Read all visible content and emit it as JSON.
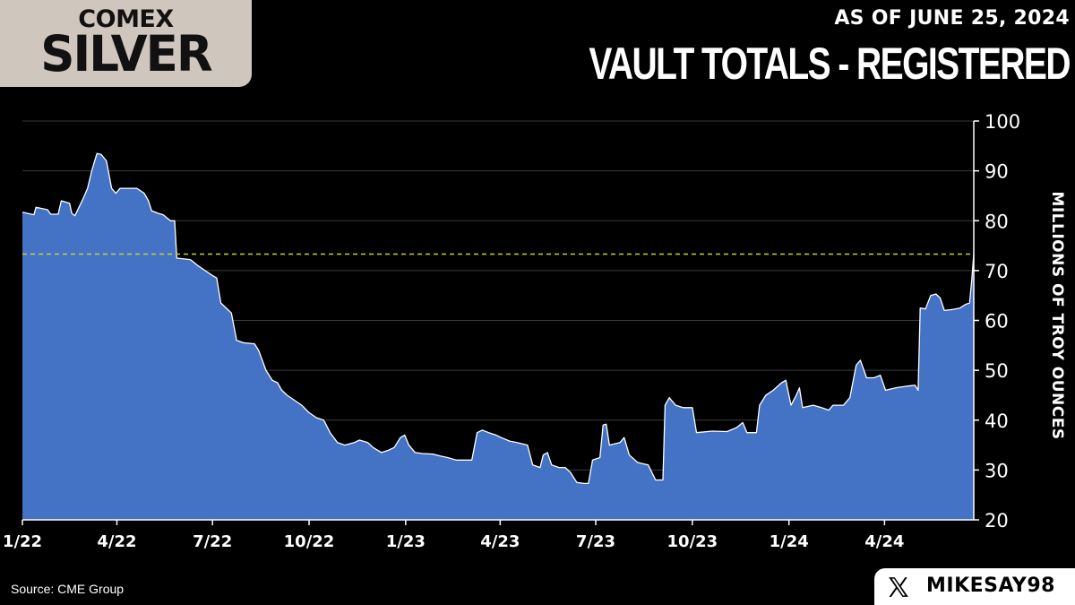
{
  "header": {
    "logo_line1": "COMEX",
    "logo_line2": "SILVER",
    "date_label": "AS OF JUNE 25, 2024",
    "title": "VAULT TOTALS - REGISTERED"
  },
  "footer": {
    "source": "Source: CME Group",
    "handle": "MIKESAY98",
    "social_icon": "x-logo-icon"
  },
  "colors": {
    "background": "#000000",
    "area_fill": "#4472c4",
    "area_line": "#ffffff",
    "reference_line": "#c6d13a",
    "grid": "#3a3a3a",
    "logo_bg": "#cfc6bd"
  },
  "chart_data": {
    "type": "area",
    "title": "VAULT TOTALS - REGISTERED",
    "ylabel": "MILLIONS OF TROY OUNCES",
    "ylim": [
      20,
      100
    ],
    "y_ticks": [
      20,
      30,
      40,
      50,
      60,
      70,
      80,
      90,
      100
    ],
    "x_ticks": [
      "1/22",
      "4/22",
      "7/22",
      "10/22",
      "1/23",
      "4/23",
      "7/23",
      "10/23",
      "1/24",
      "4/24"
    ],
    "x_range": [
      "2022-01-01",
      "2024-06-25"
    ],
    "grid": true,
    "y_axis_side": "right",
    "reference_line": 73.3,
    "series": [
      {
        "values": [
          [
            "2022-01-01",
            81.7
          ],
          [
            "2022-01-12",
            81.2
          ],
          [
            "2022-01-14",
            82.7
          ],
          [
            "2022-01-25",
            82.2
          ],
          [
            "2022-01-28",
            81.3
          ],
          [
            "2022-02-04",
            81.3
          ],
          [
            "2022-02-07",
            84.0
          ],
          [
            "2022-02-15",
            83.5
          ],
          [
            "2022-02-17",
            81.5
          ],
          [
            "2022-02-20",
            81.0
          ],
          [
            "2022-02-28",
            84.5
          ],
          [
            "2022-03-04",
            86.5
          ],
          [
            "2022-03-08",
            90.0
          ],
          [
            "2022-03-13",
            93.5
          ],
          [
            "2022-03-17",
            93.3
          ],
          [
            "2022-03-22",
            92.0
          ],
          [
            "2022-03-27",
            86.5
          ],
          [
            "2022-03-31",
            85.5
          ],
          [
            "2022-04-04",
            86.5
          ],
          [
            "2022-04-12",
            86.5
          ],
          [
            "2022-04-20",
            86.5
          ],
          [
            "2022-04-27",
            85.5
          ],
          [
            "2022-05-01",
            84.0
          ],
          [
            "2022-05-04",
            82.0
          ],
          [
            "2022-05-10",
            81.5
          ],
          [
            "2022-05-15",
            81.2
          ],
          [
            "2022-05-19",
            80.5
          ],
          [
            "2022-05-22",
            80.0
          ],
          [
            "2022-05-26",
            80.0
          ],
          [
            "2022-05-28",
            72.5
          ],
          [
            "2022-06-10",
            72.2
          ],
          [
            "2022-06-17",
            71.0
          ],
          [
            "2022-06-24",
            70.0
          ],
          [
            "2022-07-01",
            69.0
          ],
          [
            "2022-07-05",
            68.5
          ],
          [
            "2022-07-09",
            63.5
          ],
          [
            "2022-07-14",
            62.5
          ],
          [
            "2022-07-19",
            61.5
          ],
          [
            "2022-07-24",
            56.0
          ],
          [
            "2022-07-31",
            55.5
          ],
          [
            "2022-08-10",
            55.3
          ],
          [
            "2022-08-14",
            54.0
          ],
          [
            "2022-08-21",
            50.0
          ],
          [
            "2022-08-27",
            48.0
          ],
          [
            "2022-09-01",
            47.5
          ],
          [
            "2022-09-05",
            46.0
          ],
          [
            "2022-09-10",
            45.0
          ],
          [
            "2022-09-17",
            44.0
          ],
          [
            "2022-09-24",
            43.0
          ],
          [
            "2022-10-01",
            41.5
          ],
          [
            "2022-10-08",
            40.5
          ],
          [
            "2022-10-15",
            40.0
          ],
          [
            "2022-10-21",
            37.5
          ],
          [
            "2022-10-28",
            35.5
          ],
          [
            "2022-11-04",
            35.0
          ],
          [
            "2022-11-13",
            35.5
          ],
          [
            "2022-11-18",
            36.0
          ],
          [
            "2022-11-26",
            35.5
          ],
          [
            "2022-12-01",
            34.5
          ],
          [
            "2022-12-09",
            33.5
          ],
          [
            "2022-12-16",
            34.0
          ],
          [
            "2022-12-21",
            34.5
          ],
          [
            "2022-12-27",
            36.5
          ],
          [
            "2022-12-31",
            37.0
          ],
          [
            "2023-01-04",
            35.0
          ],
          [
            "2023-01-10",
            33.5
          ],
          [
            "2023-01-17",
            33.3
          ],
          [
            "2023-01-27",
            33.2
          ],
          [
            "2023-02-03",
            32.8
          ],
          [
            "2023-02-10",
            32.5
          ],
          [
            "2023-02-18",
            32.0
          ],
          [
            "2023-02-25",
            32.0
          ],
          [
            "2023-03-05",
            32.0
          ],
          [
            "2023-03-10",
            37.5
          ],
          [
            "2023-03-15",
            38.0
          ],
          [
            "2023-03-21",
            37.5
          ],
          [
            "2023-03-28",
            37.0
          ],
          [
            "2023-04-02",
            36.5
          ],
          [
            "2023-04-10",
            35.8
          ],
          [
            "2023-04-17",
            35.5
          ],
          [
            "2023-04-27",
            35.0
          ],
          [
            "2023-05-02",
            31.0
          ],
          [
            "2023-05-09",
            30.5
          ],
          [
            "2023-05-12",
            33.0
          ],
          [
            "2023-05-16",
            33.5
          ],
          [
            "2023-05-20",
            31.0
          ],
          [
            "2023-05-27",
            30.5
          ],
          [
            "2023-06-02",
            30.5
          ],
          [
            "2023-06-07",
            29.5
          ],
          [
            "2023-06-13",
            27.5
          ],
          [
            "2023-06-20",
            27.3
          ],
          [
            "2023-06-24",
            27.3
          ],
          [
            "2023-06-28",
            32.0
          ],
          [
            "2023-07-05",
            32.5
          ],
          [
            "2023-07-08",
            39.0
          ],
          [
            "2023-07-11",
            39.2
          ],
          [
            "2023-07-14",
            35.0
          ],
          [
            "2023-07-24",
            35.5
          ],
          [
            "2023-07-28",
            36.5
          ],
          [
            "2023-08-02",
            33.0
          ],
          [
            "2023-08-10",
            31.5
          ],
          [
            "2023-08-20",
            31.0
          ],
          [
            "2023-08-27",
            28.0
          ],
          [
            "2023-09-03",
            28.0
          ],
          [
            "2023-09-05",
            43.0
          ],
          [
            "2023-09-09",
            44.5
          ],
          [
            "2023-09-15",
            43.0
          ],
          [
            "2023-09-22",
            42.5
          ],
          [
            "2023-10-01",
            42.5
          ],
          [
            "2023-10-05",
            37.5
          ],
          [
            "2023-10-20",
            37.8
          ],
          [
            "2023-11-03",
            37.7
          ],
          [
            "2023-11-12",
            38.5
          ],
          [
            "2023-11-18",
            39.5
          ],
          [
            "2023-11-22",
            37.5
          ],
          [
            "2023-12-01",
            37.5
          ],
          [
            "2023-12-04",
            43.0
          ],
          [
            "2023-12-10",
            45.0
          ],
          [
            "2023-12-17",
            46.0
          ],
          [
            "2023-12-25",
            47.5
          ],
          [
            "2023-12-29",
            48.0
          ],
          [
            "2024-01-03",
            43.0
          ],
          [
            "2024-01-08",
            45.0
          ],
          [
            "2024-01-11",
            46.5
          ],
          [
            "2024-01-14",
            42.5
          ],
          [
            "2024-01-24",
            43.0
          ],
          [
            "2024-02-01",
            42.5
          ],
          [
            "2024-02-08",
            42.0
          ],
          [
            "2024-02-12",
            43.0
          ],
          [
            "2024-02-22",
            43.0
          ],
          [
            "2024-02-28",
            44.5
          ],
          [
            "2024-03-05",
            51.0
          ],
          [
            "2024-03-09",
            52.0
          ],
          [
            "2024-03-15",
            48.5
          ],
          [
            "2024-03-22",
            48.5
          ],
          [
            "2024-03-28",
            49.0
          ],
          [
            "2024-04-02",
            46.0
          ],
          [
            "2024-04-12",
            46.5
          ],
          [
            "2024-04-22",
            46.8
          ],
          [
            "2024-04-30",
            47.0
          ],
          [
            "2024-05-03",
            46.0
          ],
          [
            "2024-05-05",
            62.5
          ],
          [
            "2024-05-10",
            62.3
          ],
          [
            "2024-05-15",
            65.0
          ],
          [
            "2024-05-20",
            65.3
          ],
          [
            "2024-05-24",
            64.5
          ],
          [
            "2024-05-28",
            62.0
          ],
          [
            "2024-06-05",
            62.2
          ],
          [
            "2024-06-12",
            62.5
          ],
          [
            "2024-06-17",
            63.2
          ],
          [
            "2024-06-21",
            63.5
          ],
          [
            "2024-06-23",
            68.0
          ],
          [
            "2024-06-25",
            73.3
          ]
        ]
      }
    ]
  }
}
